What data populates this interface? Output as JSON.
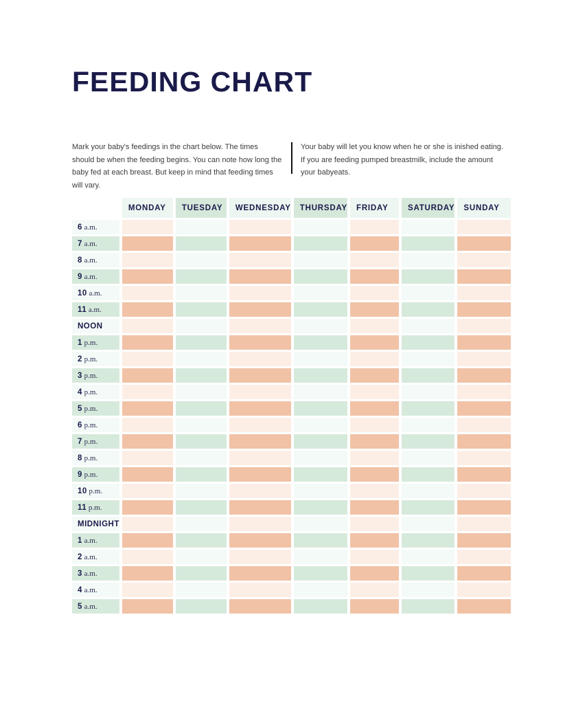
{
  "title": "FEEDING CHART",
  "intro": {
    "left": "Mark your baby's feedings in the chart below. The times should be when the feeding begins. You can note how long the baby fed at each breast. But keep in mind that feeding times will vary.",
    "right": "Your baby will let you know when he or she is inished eating. If you are feeding pumped breastmilk, include the amount your babyeats."
  },
  "colors": {
    "navy": "#1a1a4a",
    "body_text": "#3c3c3c",
    "divider": "#111111",
    "peach_dark": "#f1c2a6",
    "peach_light": "#fdeee5",
    "mint_dark": "#d6eadc",
    "mint_light": "#f3faf7",
    "header_mint": "#d6e8da",
    "header_pale": "#edf6f1"
  },
  "table": {
    "days": [
      {
        "label": "MONDAY",
        "shade": "pale"
      },
      {
        "label": "TUESDAY",
        "shade": "mint"
      },
      {
        "label": "WEDNESDAY",
        "shade": "pale"
      },
      {
        "label": "THURSDAY",
        "shade": "mint"
      },
      {
        "label": "FRIDAY",
        "shade": "pale"
      },
      {
        "label": "SATURDAY",
        "shade": "mint"
      },
      {
        "label": "SUNDAY",
        "shade": "pale"
      }
    ],
    "column_tints": [
      "peach",
      "mint",
      "peach",
      "mint",
      "peach",
      "mint",
      "peach"
    ],
    "rows": [
      {
        "time": "6",
        "suffix": "a.m.",
        "shade": "light"
      },
      {
        "time": "7",
        "suffix": "a.m.",
        "shade": "dark"
      },
      {
        "time": "8",
        "suffix": "a.m.",
        "shade": "light"
      },
      {
        "time": "9",
        "suffix": "a.m.",
        "shade": "dark"
      },
      {
        "time": "10",
        "suffix": "a.m.",
        "shade": "light"
      },
      {
        "time": "11",
        "suffix": "a.m.",
        "shade": "dark"
      },
      {
        "time": "NOON",
        "suffix": "",
        "shade": "light"
      },
      {
        "time": "1",
        "suffix": "p.m.",
        "shade": "dark"
      },
      {
        "time": "2",
        "suffix": "p.m.",
        "shade": "light"
      },
      {
        "time": "3",
        "suffix": "p.m.",
        "shade": "dark"
      },
      {
        "time": "4",
        "suffix": "p.m.",
        "shade": "light"
      },
      {
        "time": "5",
        "suffix": "p.m.",
        "shade": "dark"
      },
      {
        "time": "6",
        "suffix": "p.m.",
        "shade": "light"
      },
      {
        "time": "7",
        "suffix": "p.m.",
        "shade": "dark"
      },
      {
        "time": "8",
        "suffix": "p.m.",
        "shade": "light"
      },
      {
        "time": "9",
        "suffix": "p.m.",
        "shade": "dark"
      },
      {
        "time": "10",
        "suffix": "p.m.",
        "shade": "light"
      },
      {
        "time": "11",
        "suffix": "p.m.",
        "shade": "dark"
      },
      {
        "time": "MIDNIGHT",
        "suffix": "",
        "shade": "light"
      },
      {
        "time": "1",
        "suffix": "a.m.",
        "shade": "dark"
      },
      {
        "time": "2",
        "suffix": "a.m.",
        "shade": "light"
      },
      {
        "time": "3",
        "suffix": "a.m.",
        "shade": "dark"
      },
      {
        "time": "4",
        "suffix": "a.m.",
        "shade": "light"
      },
      {
        "time": "5",
        "suffix": "a.m.",
        "shade": "dark"
      }
    ]
  }
}
